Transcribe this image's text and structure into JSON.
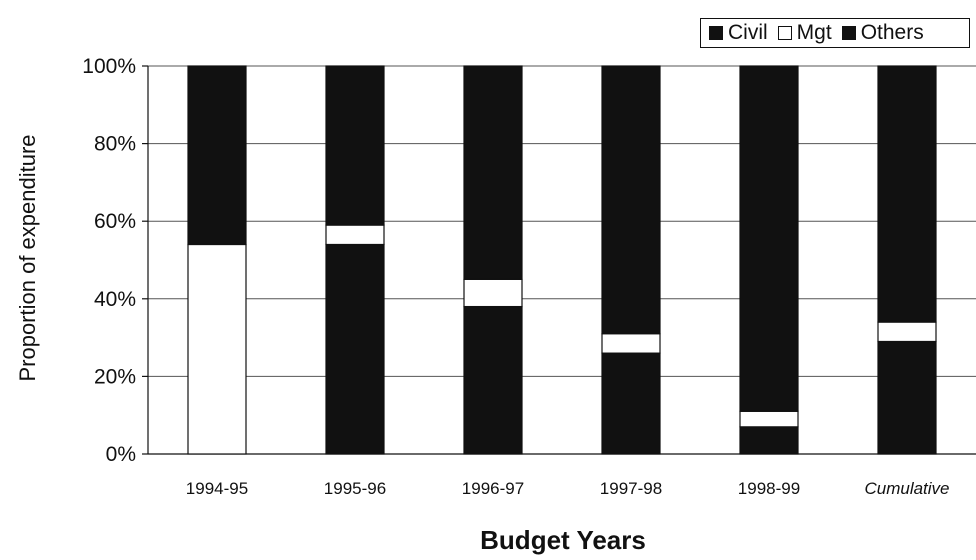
{
  "chart_data": {
    "type": "bar",
    "stacked": true,
    "percent": true,
    "categories": [
      "1994-95",
      "1995-96",
      "1996-97",
      "1997-98",
      "1998-99",
      "Cumulative"
    ],
    "series": [
      {
        "name": "Civil",
        "values": [
          0,
          54,
          38,
          26,
          7,
          29
        ],
        "color": "#111111"
      },
      {
        "name": "Mgt",
        "values": [
          54,
          5,
          7,
          5,
          4,
          5
        ],
        "color": "#ffffff"
      },
      {
        "name": "Others",
        "values": [
          46,
          41,
          55,
          69,
          89,
          66
        ],
        "color": "#111111"
      }
    ],
    "yticks": [
      "0%",
      "20%",
      "40%",
      "60%",
      "80%",
      "100%"
    ],
    "ylim": [
      0,
      100
    ],
    "xlabel": "Budget Years",
    "ylabel": "Proportion of expenditure",
    "legend_position": "top-right",
    "grid": true
  }
}
